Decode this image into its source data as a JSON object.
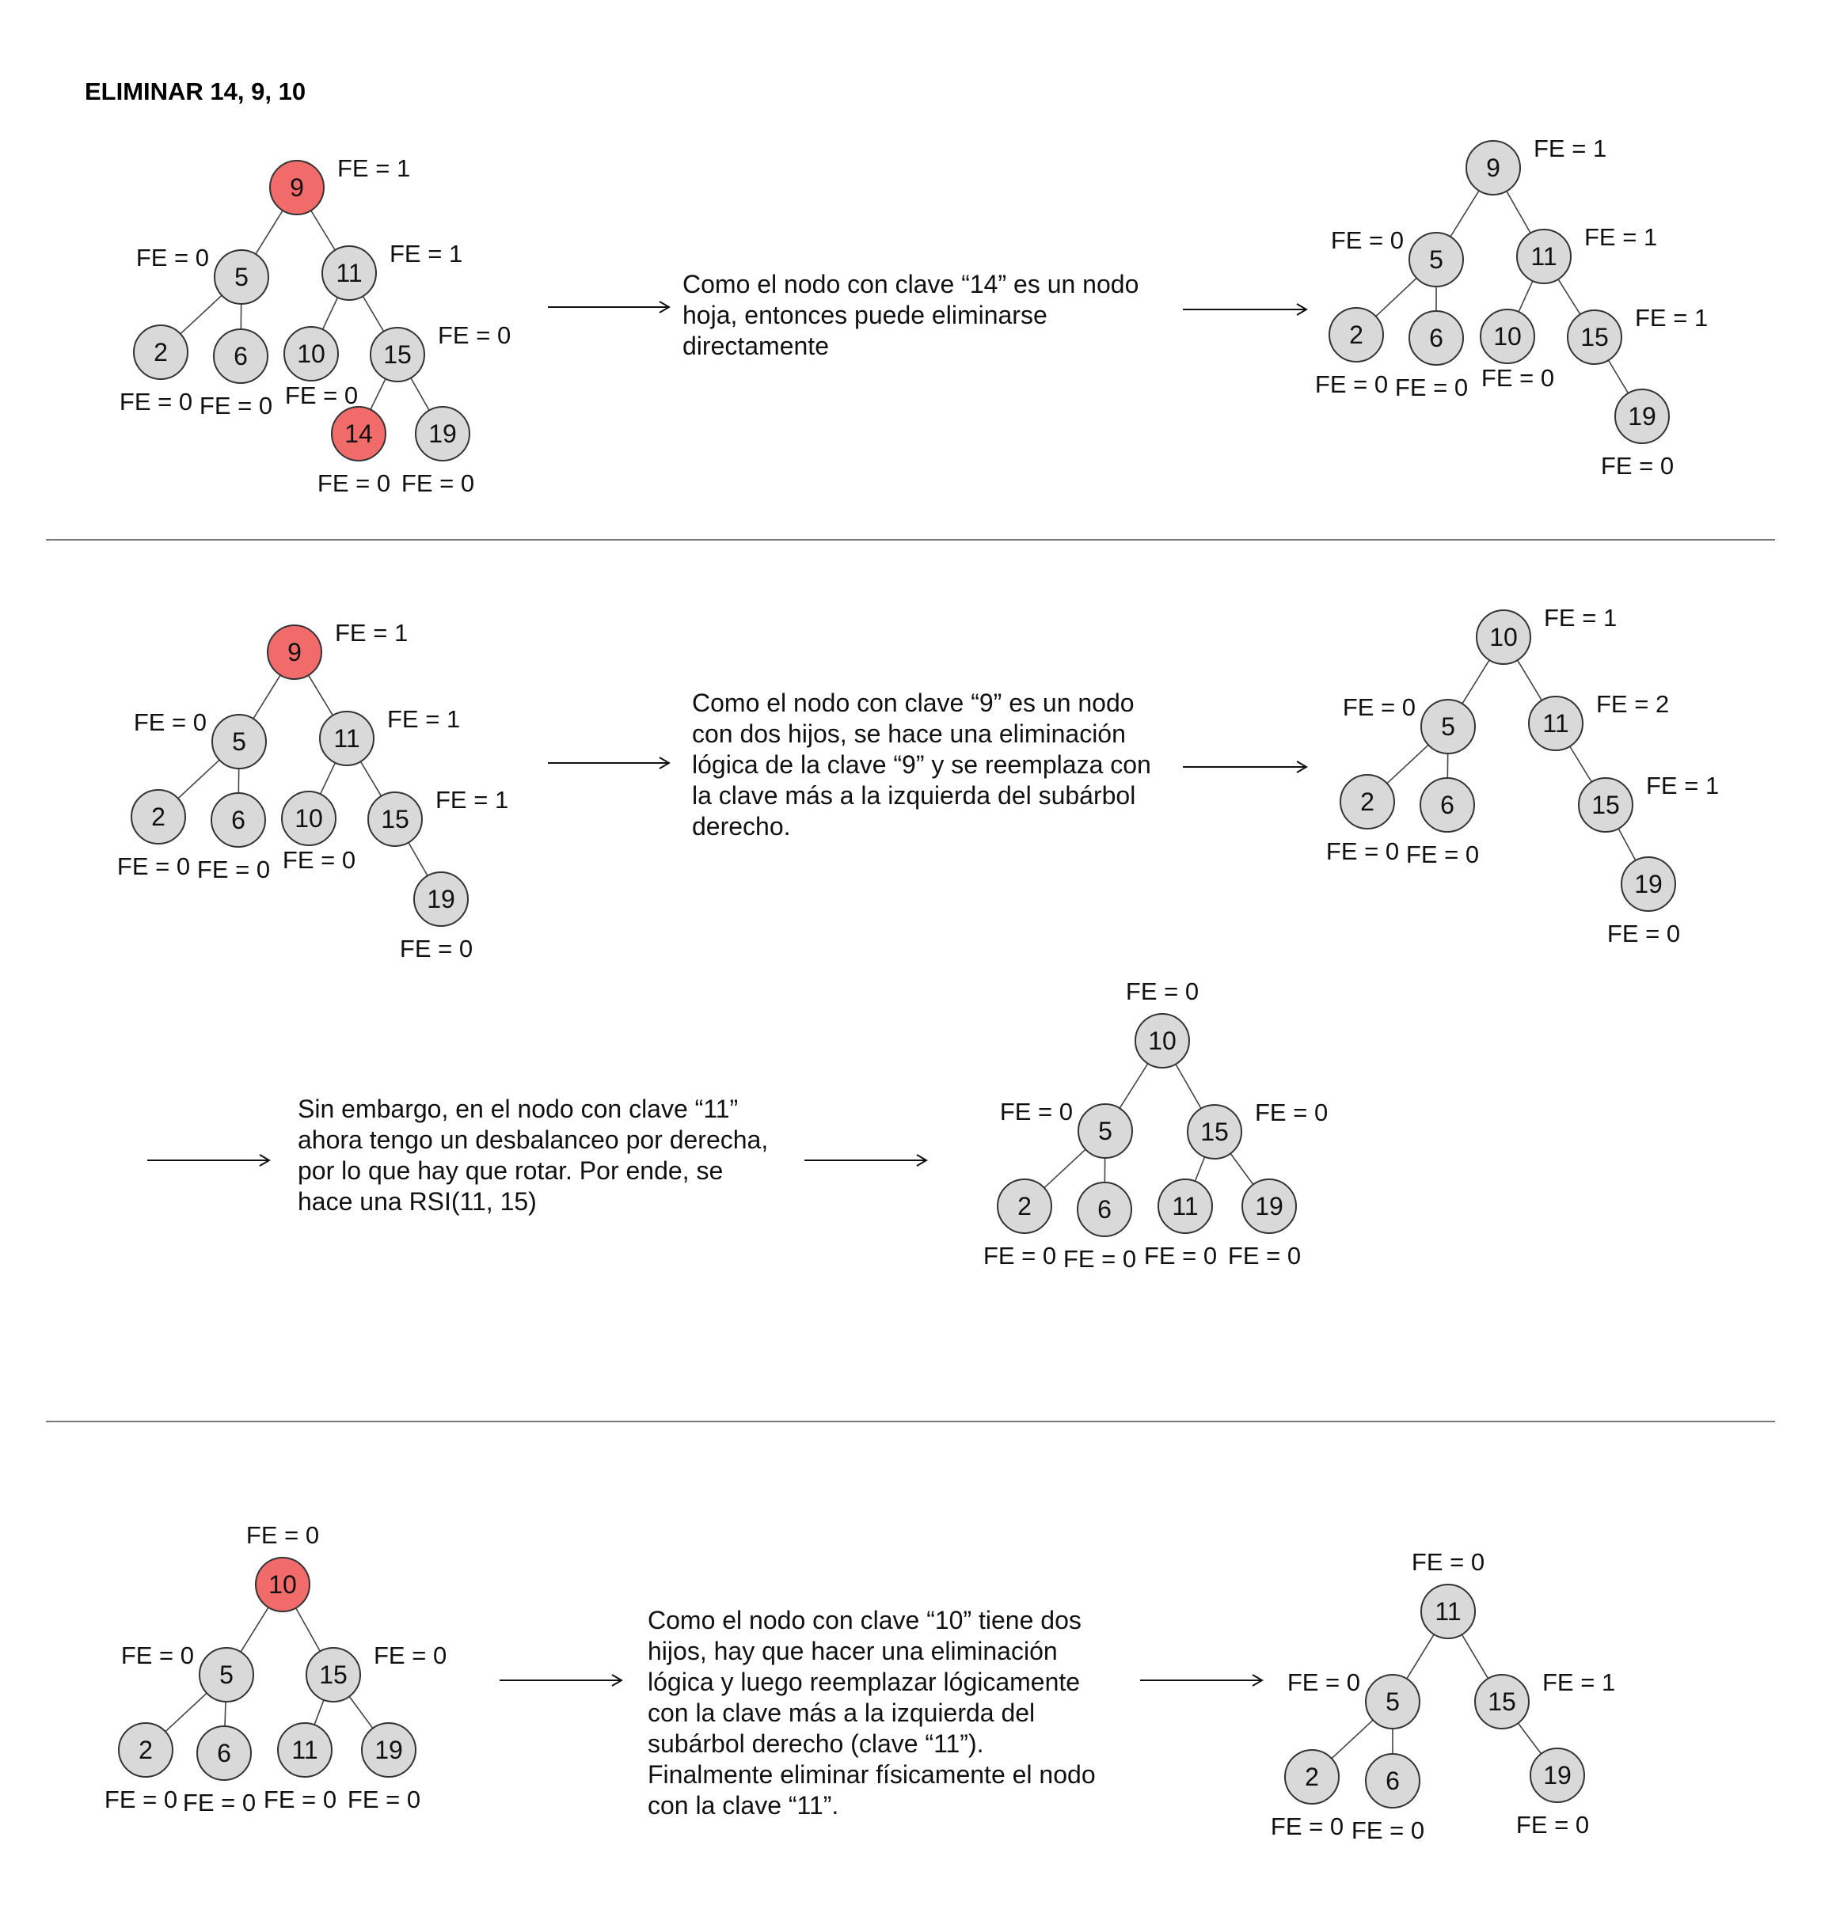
{
  "title": "ELIMINAR 14, 9, 10",
  "colors": {
    "node_fill": "#d9d9d9",
    "highlight_fill": "#f26b6b"
  },
  "sections": [
    {
      "before": {
        "nodes": [
          {
            "id": "n9",
            "key": "9",
            "fe": "FE = 1",
            "highlight": true
          },
          {
            "id": "n5",
            "key": "5",
            "fe": "FE = 0"
          },
          {
            "id": "n11",
            "key": "11",
            "fe": "FE = 1"
          },
          {
            "id": "n2",
            "key": "2",
            "fe": "FE = 0"
          },
          {
            "id": "n6",
            "key": "6",
            "fe": "FE = 0"
          },
          {
            "id": "n10",
            "key": "10",
            "fe": "FE = 0"
          },
          {
            "id": "n15",
            "key": "15",
            "fe": "FE = 0"
          },
          {
            "id": "n14",
            "key": "14",
            "fe": "FE = 0",
            "highlight": true
          },
          {
            "id": "n19",
            "key": "19",
            "fe": "FE = 0"
          }
        ],
        "edges": [
          [
            "n9",
            "n5"
          ],
          [
            "n9",
            "n11"
          ],
          [
            "n5",
            "n2"
          ],
          [
            "n5",
            "n6"
          ],
          [
            "n11",
            "n10"
          ],
          [
            "n11",
            "n15"
          ],
          [
            "n15",
            "n14"
          ],
          [
            "n15",
            "n19"
          ]
        ]
      },
      "text": "Como el nodo con clave “14” es un nodo hoja, entonces puede eliminarse directamente",
      "after": {
        "nodes": [
          {
            "id": "a9",
            "key": "9",
            "fe": "FE = 1"
          },
          {
            "id": "a5",
            "key": "5",
            "fe": "FE = 0"
          },
          {
            "id": "a11",
            "key": "11",
            "fe": "FE = 1"
          },
          {
            "id": "a2",
            "key": "2",
            "fe": "FE = 0"
          },
          {
            "id": "a6",
            "key": "6",
            "fe": "FE = 0"
          },
          {
            "id": "a10",
            "key": "10",
            "fe": "FE = 0"
          },
          {
            "id": "a15",
            "key": "15",
            "fe": "FE = 1"
          },
          {
            "id": "a19",
            "key": "19",
            "fe": "FE = 0"
          }
        ],
        "edges": [
          [
            "a9",
            "a5"
          ],
          [
            "a9",
            "a11"
          ],
          [
            "a5",
            "a2"
          ],
          [
            "a5",
            "a6"
          ],
          [
            "a11",
            "a10"
          ],
          [
            "a11",
            "a15"
          ],
          [
            "a15",
            "a19"
          ]
        ]
      }
    },
    {
      "before": {
        "nodes": [
          {
            "id": "b9",
            "key": "9",
            "fe": "FE = 1",
            "highlight": true
          },
          {
            "id": "b5",
            "key": "5",
            "fe": "FE = 0"
          },
          {
            "id": "b11",
            "key": "11",
            "fe": "FE = 1"
          },
          {
            "id": "b2",
            "key": "2",
            "fe": "FE = 0"
          },
          {
            "id": "b6",
            "key": "6",
            "fe": "FE = 0"
          },
          {
            "id": "b10",
            "key": "10",
            "fe": "FE = 0"
          },
          {
            "id": "b15",
            "key": "15",
            "fe": "FE = 1"
          },
          {
            "id": "b19",
            "key": "19",
            "fe": "FE = 0"
          }
        ],
        "edges": [
          [
            "b9",
            "b5"
          ],
          [
            "b9",
            "b11"
          ],
          [
            "b5",
            "b2"
          ],
          [
            "b5",
            "b6"
          ],
          [
            "b11",
            "b10"
          ],
          [
            "b11",
            "b15"
          ],
          [
            "b15",
            "b19"
          ]
        ]
      },
      "text": "Como el nodo con clave “9” es un nodo con dos hijos, se hace una eliminación lógica de la clave “9” y se reemplaza con la clave más a la izquierda del subárbol derecho.",
      "after": {
        "nodes": [
          {
            "id": "c10",
            "key": "10",
            "fe": "FE = 1"
          },
          {
            "id": "c5",
            "key": "5",
            "fe": "FE = 0"
          },
          {
            "id": "c11",
            "key": "11",
            "fe": "FE = 2"
          },
          {
            "id": "c2",
            "key": "2",
            "fe": "FE = 0"
          },
          {
            "id": "c6",
            "key": "6",
            "fe": "FE = 0"
          },
          {
            "id": "c15",
            "key": "15",
            "fe": "FE = 1"
          },
          {
            "id": "c19",
            "key": "19",
            "fe": "FE = 0"
          }
        ],
        "edges": [
          [
            "c10",
            "c5"
          ],
          [
            "c10",
            "c11"
          ],
          [
            "c5",
            "c2"
          ],
          [
            "c5",
            "c6"
          ],
          [
            "c11",
            "c15"
          ],
          [
            "c15",
            "c19"
          ]
        ]
      },
      "text2": "Sin embargo, en el nodo con clave “11” ahora tengo un desbalanceo por derecha, por lo que hay que rotar. Por ende, se hace una RSI(11, 15)",
      "rotated": {
        "nodes": [
          {
            "id": "d10",
            "key": "10",
            "fe": "FE = 0"
          },
          {
            "id": "d5",
            "key": "5",
            "fe": "FE = 0"
          },
          {
            "id": "d15",
            "key": "15",
            "fe": "FE = 0"
          },
          {
            "id": "d2",
            "key": "2",
            "fe": "FE = 0"
          },
          {
            "id": "d6",
            "key": "6",
            "fe": "FE = 0"
          },
          {
            "id": "d11",
            "key": "11",
            "fe": "FE = 0"
          },
          {
            "id": "d19",
            "key": "19",
            "fe": "FE = 0"
          }
        ],
        "edges": [
          [
            "d10",
            "d5"
          ],
          [
            "d10",
            "d15"
          ],
          [
            "d5",
            "d2"
          ],
          [
            "d5",
            "d6"
          ],
          [
            "d15",
            "d11"
          ],
          [
            "d15",
            "d19"
          ]
        ]
      }
    },
    {
      "before": {
        "nodes": [
          {
            "id": "e10",
            "key": "10",
            "fe": "FE = 0",
            "highlight": true
          },
          {
            "id": "e5",
            "key": "5",
            "fe": "FE = 0"
          },
          {
            "id": "e15",
            "key": "15",
            "fe": "FE = 0"
          },
          {
            "id": "e2",
            "key": "2",
            "fe": "FE = 0"
          },
          {
            "id": "e6",
            "key": "6",
            "fe": "FE = 0"
          },
          {
            "id": "e11",
            "key": "11",
            "fe": "FE = 0"
          },
          {
            "id": "e19",
            "key": "19",
            "fe": "FE = 0"
          }
        ],
        "edges": [
          [
            "e10",
            "e5"
          ],
          [
            "e10",
            "e15"
          ],
          [
            "e5",
            "e2"
          ],
          [
            "e5",
            "e6"
          ],
          [
            "e15",
            "e11"
          ],
          [
            "e15",
            "e19"
          ]
        ]
      },
      "text": "Como el nodo con clave “10” tiene dos hijos, hay que hacer una eliminación lógica y luego reemplazar lógicamente con la clave más a la izquierda del subárbol derecho (clave “11”). Finalmente eliminar físicamente el nodo con la clave “11”.",
      "after": {
        "nodes": [
          {
            "id": "f11",
            "key": "11",
            "fe": "FE = 0"
          },
          {
            "id": "f5",
            "key": "5",
            "fe": "FE = 0"
          },
          {
            "id": "f15",
            "key": "15",
            "fe": "FE = 1"
          },
          {
            "id": "f2",
            "key": "2",
            "fe": "FE = 0"
          },
          {
            "id": "f6",
            "key": "6",
            "fe": "FE = 0"
          },
          {
            "id": "f19",
            "key": "19",
            "fe": "FE = 0"
          }
        ],
        "edges": [
          [
            "f11",
            "f5"
          ],
          [
            "f11",
            "f15"
          ],
          [
            "f5",
            "f2"
          ],
          [
            "f5",
            "f6"
          ],
          [
            "f15",
            "f19"
          ]
        ]
      }
    }
  ]
}
